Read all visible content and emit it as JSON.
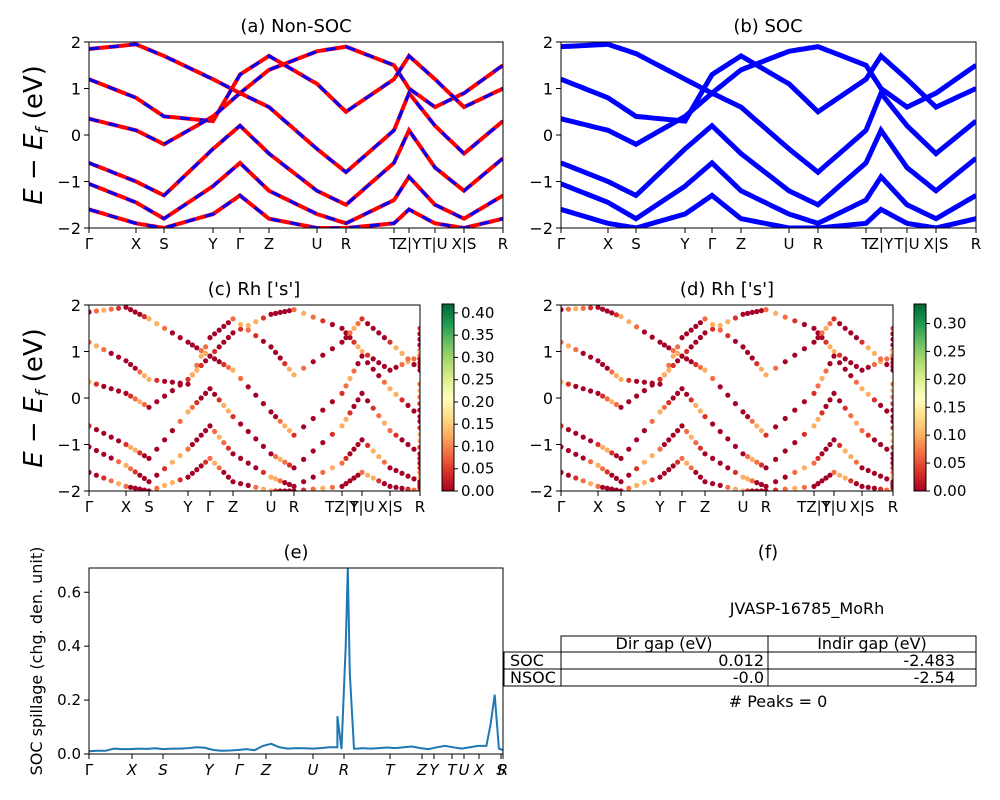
{
  "chart_data": [
    {
      "id": "a",
      "type": "line",
      "title": "(a) Non-SOC",
      "ylabel": "E − E_f (eV)",
      "ylim": [
        -2,
        2
      ],
      "yticks": [
        "2",
        "1",
        "0",
        "−1",
        "−2"
      ],
      "kpath_labels": [
        "Γ",
        "X",
        "S",
        "Y",
        "Γ",
        "Z",
        "U",
        "R",
        "T",
        "Z|Y",
        "T|U",
        "X|S",
        "R"
      ],
      "series": [
        {
          "color": "#ff0000",
          "style": "solid"
        },
        {
          "color": "#0000ff",
          "style": "dashed"
        }
      ],
      "bands": [
        [
          1.85,
          1.95,
          1.7,
          1.2,
          0.9,
          1.4,
          1.8,
          1.9,
          1.5,
          1.0,
          0.6,
          0.9,
          1.5
        ],
        [
          1.2,
          0.8,
          0.4,
          0.3,
          1.3,
          1.7,
          1.1,
          0.5,
          1.2,
          1.7,
          1.2,
          0.6,
          1.0
        ],
        [
          0.35,
          0.1,
          -0.2,
          0.4,
          0.9,
          0.6,
          -0.3,
          -0.8,
          0.1,
          0.9,
          0.2,
          -0.4,
          0.3
        ],
        [
          -0.6,
          -1.0,
          -1.3,
          -0.3,
          0.2,
          -0.4,
          -1.2,
          -1.5,
          -0.6,
          0.1,
          -0.7,
          -1.2,
          -0.5
        ],
        [
          -1.05,
          -1.45,
          -1.8,
          -1.1,
          -0.6,
          -1.2,
          -1.7,
          -1.9,
          -1.4,
          -0.9,
          -1.5,
          -1.8,
          -1.3
        ],
        [
          -1.6,
          -1.9,
          -2.0,
          -1.7,
          -1.3,
          -1.8,
          -2.0,
          -2.0,
          -1.9,
          -1.6,
          -1.9,
          -2.0,
          -1.8
        ]
      ]
    },
    {
      "id": "b",
      "type": "line",
      "title": "(b) SOC",
      "ylim": [
        -2,
        2
      ],
      "yticks": [
        "2",
        "1",
        "0",
        "−1",
        "−2"
      ],
      "kpath_labels": [
        "Γ",
        "X",
        "S",
        "Y",
        "Γ",
        "Z",
        "U",
        "R",
        "T",
        "Z|Y",
        "T|U",
        "X|S",
        "R"
      ],
      "series": [
        {
          "color": "#0000ff",
          "style": "solid"
        }
      ],
      "bands": [
        [
          1.9,
          1.95,
          1.75,
          1.2,
          0.9,
          1.4,
          1.8,
          1.9,
          1.5,
          1.0,
          0.6,
          0.9,
          1.5
        ],
        [
          1.2,
          0.8,
          0.4,
          0.3,
          1.3,
          1.7,
          1.1,
          0.5,
          1.2,
          1.7,
          1.2,
          0.6,
          1.0
        ],
        [
          0.35,
          0.1,
          -0.2,
          0.4,
          0.9,
          0.6,
          -0.3,
          -0.8,
          0.1,
          0.9,
          0.2,
          -0.4,
          0.3
        ],
        [
          -0.6,
          -1.0,
          -1.3,
          -0.3,
          0.2,
          -0.4,
          -1.2,
          -1.5,
          -0.6,
          0.1,
          -0.7,
          -1.2,
          -0.5
        ],
        [
          -1.05,
          -1.45,
          -1.8,
          -1.1,
          -0.6,
          -1.2,
          -1.7,
          -1.9,
          -1.4,
          -0.9,
          -1.5,
          -1.8,
          -1.3
        ],
        [
          -1.6,
          -1.9,
          -2.0,
          -1.7,
          -1.3,
          -1.8,
          -2.0,
          -2.0,
          -1.9,
          -1.6,
          -1.9,
          -2.0,
          -1.8
        ]
      ]
    },
    {
      "id": "c",
      "type": "scatter",
      "title": "(c)  Rh ['s']",
      "ylabel": "E − E_f (eV)",
      "ylim": [
        -2,
        2
      ],
      "yticks": [
        "2",
        "1",
        "0",
        "−1",
        "−2"
      ],
      "kpath_labels": [
        "Γ",
        "X",
        "S",
        "Y",
        "Γ",
        "Z",
        "U",
        "R",
        "TZ|Y",
        "T|U",
        "X|S",
        "R"
      ],
      "colorbar": {
        "min": 0.0,
        "max": 0.42,
        "colormap": "RdYlGn",
        "ticks": [
          "0.00",
          "0.05",
          "0.10",
          "0.15",
          "0.20",
          "0.25",
          "0.30",
          "0.35",
          "0.40"
        ]
      },
      "bands": [
        [
          1.85,
          1.95,
          1.7,
          1.2,
          0.9,
          1.4,
          1.8,
          1.9,
          1.5,
          1.0,
          0.6,
          0.9,
          1.5
        ],
        [
          1.2,
          0.8,
          0.4,
          0.3,
          1.3,
          1.7,
          1.1,
          0.5,
          1.2,
          1.7,
          1.2,
          0.6,
          1.0
        ],
        [
          0.35,
          0.1,
          -0.2,
          0.4,
          0.9,
          0.6,
          -0.3,
          -0.8,
          0.1,
          0.9,
          0.2,
          -0.4,
          0.3
        ],
        [
          -0.6,
          -1.0,
          -1.3,
          -0.3,
          0.2,
          -0.4,
          -1.2,
          -1.5,
          -0.6,
          0.1,
          -0.7,
          -1.2,
          -0.5
        ],
        [
          -1.05,
          -1.45,
          -1.8,
          -1.1,
          -0.6,
          -1.2,
          -1.7,
          -1.9,
          -1.4,
          -0.9,
          -1.5,
          -1.8,
          -1.3
        ],
        [
          -1.6,
          -1.9,
          -2.0,
          -1.7,
          -1.3,
          -1.8,
          -2.0,
          -2.0,
          -1.9,
          -1.6,
          -1.9,
          -2.0,
          -1.8
        ]
      ]
    },
    {
      "id": "d",
      "type": "scatter",
      "title": "(d) Rh ['s']",
      "ylim": [
        -2,
        2
      ],
      "yticks": [
        "2",
        "1",
        "0",
        "−1",
        "−2"
      ],
      "kpath_labels": [
        "Γ",
        "X",
        "S",
        "Y",
        "Γ",
        "Z",
        "U",
        "R",
        "TZ|Y",
        "T|U",
        "X|S",
        "R"
      ],
      "colorbar": {
        "min": 0.0,
        "max": 0.335,
        "colormap": "RdYlGn",
        "ticks": [
          "0.00",
          "0.05",
          "0.10",
          "0.15",
          "0.20",
          "0.25",
          "0.30"
        ]
      },
      "bands": [
        [
          1.9,
          1.95,
          1.75,
          1.2,
          0.9,
          1.4,
          1.8,
          1.9,
          1.5,
          1.0,
          0.6,
          0.9,
          1.5
        ],
        [
          1.2,
          0.8,
          0.4,
          0.3,
          1.3,
          1.7,
          1.1,
          0.5,
          1.2,
          1.7,
          1.2,
          0.6,
          1.0
        ],
        [
          0.35,
          0.1,
          -0.2,
          0.4,
          0.9,
          0.6,
          -0.3,
          -0.8,
          0.1,
          0.9,
          0.2,
          -0.4,
          0.3
        ],
        [
          -0.6,
          -1.0,
          -1.3,
          -0.3,
          0.2,
          -0.4,
          -1.2,
          -1.5,
          -0.6,
          0.1,
          -0.7,
          -1.2,
          -0.5
        ],
        [
          -1.05,
          -1.45,
          -1.8,
          -1.1,
          -0.6,
          -1.2,
          -1.7,
          -1.9,
          -1.4,
          -0.9,
          -1.5,
          -1.8,
          -1.3
        ],
        [
          -1.6,
          -1.9,
          -2.0,
          -1.7,
          -1.3,
          -1.8,
          -2.0,
          -2.0,
          -1.9,
          -1.6,
          -1.9,
          -2.0,
          -1.8
        ]
      ]
    },
    {
      "id": "e",
      "type": "line",
      "title": "(e)",
      "ylabel": "SOC spillage (chg. den. unit)",
      "ylim": [
        0,
        0.69
      ],
      "yticks": [
        0.0,
        0.2,
        0.4,
        0.6
      ],
      "kpath_labels": [
        "Γ",
        "X",
        "S",
        "Y",
        "Γ",
        "Z",
        "U",
        "R",
        "T",
        "Z",
        "Y",
        "T",
        "U",
        "X",
        "S",
        "R"
      ],
      "series": [
        {
          "color": "#1f77b4"
        }
      ],
      "x": [
        0,
        0.02,
        0.04,
        0.06,
        0.08,
        0.1,
        0.12,
        0.14,
        0.16,
        0.18,
        0.2,
        0.22,
        0.24,
        0.26,
        0.28,
        0.3,
        0.32,
        0.34,
        0.36,
        0.38,
        0.4,
        0.42,
        0.44,
        0.46,
        0.48,
        0.5,
        0.52,
        0.54,
        0.56,
        0.58,
        0.6,
        0.6,
        0.61,
        0.62,
        0.625,
        0.63,
        0.64,
        0.65,
        0.66,
        0.68,
        0.7,
        0.72,
        0.74,
        0.76,
        0.78,
        0.8,
        0.82,
        0.84,
        0.86,
        0.88,
        0.9,
        0.92,
        0.94,
        0.96,
        0.97,
        0.98,
        0.99,
        1.0
      ],
      "values": [
        0.01,
        0.012,
        0.012,
        0.02,
        0.018,
        0.018,
        0.02,
        0.019,
        0.021,
        0.018,
        0.02,
        0.02,
        0.022,
        0.025,
        0.023,
        0.015,
        0.012,
        0.013,
        0.015,
        0.018,
        0.014,
        0.03,
        0.038,
        0.025,
        0.02,
        0.022,
        0.021,
        0.02,
        0.022,
        0.025,
        0.025,
        0.14,
        0.018,
        0.4,
        0.69,
        0.3,
        0.02,
        0.02,
        0.022,
        0.02,
        0.022,
        0.024,
        0.022,
        0.025,
        0.028,
        0.022,
        0.018,
        0.025,
        0.03,
        0.025,
        0.02,
        0.025,
        0.03,
        0.03,
        0.11,
        0.22,
        0.02,
        0.015
      ]
    }
  ],
  "info_panel": {
    "title": "(f)",
    "material": "JVASP-16785_MoRh",
    "table_header": [
      "",
      "Dir gap (eV)",
      "Indir gap (eV)"
    ],
    "table_rows": [
      [
        "SOC",
        "0.012",
        "-2.483"
      ],
      [
        "NSOC",
        "-0.0",
        "-2.54"
      ]
    ],
    "peaks": "# Peaks = 0"
  }
}
